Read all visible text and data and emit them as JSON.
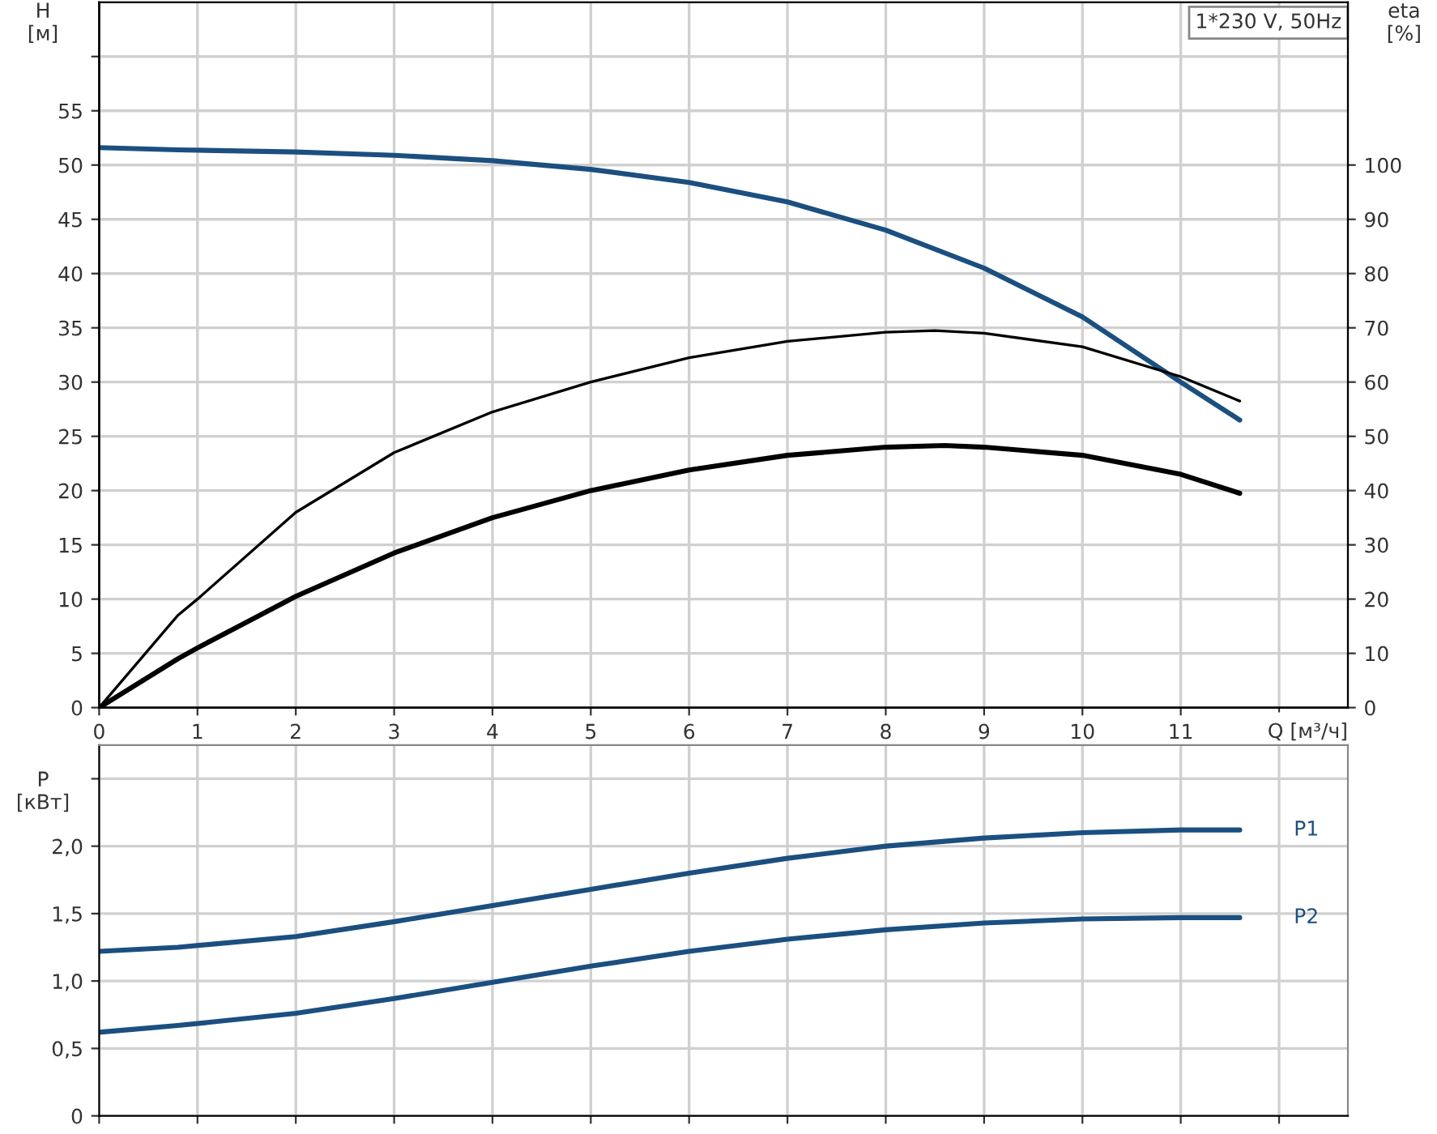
{
  "chart_data": [
    {
      "type": "line",
      "xlabel": "Q [м³/ч]",
      "ylabel": "H\n[м]",
      "y2label": "eta\n[%]",
      "annotations": [
        "1*230 V, 50Hz"
      ],
      "xlim": [
        0,
        12.7
      ],
      "xticks": [
        0,
        1,
        2,
        3,
        4,
        5,
        6,
        7,
        8,
        9,
        10,
        11,
        {
          "value": 12,
          "label": null
        }
      ],
      "ylim": [
        0,
        65
      ],
      "yticks": [
        0,
        5,
        10,
        15,
        20,
        25,
        30,
        35,
        40,
        45,
        50,
        55,
        {
          "value": 60,
          "label": null
        }
      ],
      "y2lim": [
        0,
        130
      ],
      "y2ticks": [
        0,
        10,
        20,
        30,
        40,
        50,
        60,
        70,
        80,
        90,
        100
      ],
      "grid": true,
      "legend": false,
      "marker": "none",
      "line_style": "solid",
      "series": [
        {
          "color": "#1b4f80",
          "x": [
            0,
            0.8,
            2,
            3,
            4,
            5,
            6,
            7,
            8,
            9,
            10,
            11,
            11.6
          ],
          "values": [
            51.6,
            51.4,
            51.2,
            50.9,
            50.4,
            49.6,
            48.4,
            46.6,
            44,
            40.5,
            36,
            30,
            26.5
          ]
        },
        {
          "color": "#000000",
          "axis": "y2",
          "x": [
            0,
            0.8,
            1,
            2,
            3,
            4,
            5,
            6,
            7,
            8,
            8.5,
            9,
            10,
            11,
            11.6
          ],
          "values": [
            0,
            17,
            20,
            36,
            47,
            54.5,
            60,
            64.5,
            67.5,
            69.2,
            69.5,
            69,
            66.5,
            61,
            56.5
          ]
        },
        {
          "color": "#000000",
          "axis": "y2",
          "x": [
            0,
            0.8,
            1,
            2,
            3,
            4,
            5,
            6,
            7,
            8,
            8.6,
            9,
            10,
            11,
            11.6
          ],
          "values": [
            0,
            9,
            11,
            20.5,
            28.5,
            35,
            40,
            43.8,
            46.5,
            48,
            48.3,
            48,
            46.5,
            43,
            39.5
          ]
        }
      ]
    },
    {
      "type": "line",
      "ylabel": "P\n[кВт]",
      "tick_labels": "y",
      "xlim": [
        0,
        12.7
      ],
      "xticks": [
        0,
        1,
        2,
        3,
        4,
        5,
        6,
        7,
        8,
        9,
        10,
        11,
        12
      ],
      "ylim": [
        0,
        2.75
      ],
      "yticks": [
        0,
        {
          "value": 0.5,
          "label": "0,5"
        },
        {
          "value": 1.0,
          "label": "1,0"
        },
        {
          "value": 1.5,
          "label": "1,5"
        },
        {
          "value": 2.0,
          "label": "2,0"
        },
        {
          "value": 2.5,
          "label": null
        }
      ],
      "grid": true,
      "legend": false,
      "marker": "none",
      "line_style": "solid",
      "series": [
        {
          "name": "P1",
          "color": "#1b4f80",
          "x": [
            0,
            0.8,
            2,
            3,
            4,
            5,
            6,
            7,
            8,
            9,
            10,
            11,
            11.6
          ],
          "values": [
            1.22,
            1.25,
            1.33,
            1.44,
            1.56,
            1.68,
            1.8,
            1.91,
            2.0,
            2.06,
            2.1,
            2.12,
            2.12
          ]
        },
        {
          "name": "P2",
          "color": "#1b4f80",
          "x": [
            0,
            0.8,
            2,
            3,
            4,
            5,
            6,
            7,
            8,
            9,
            10,
            11,
            11.6
          ],
          "values": [
            0.62,
            0.67,
            0.76,
            0.87,
            0.99,
            1.11,
            1.22,
            1.31,
            1.38,
            1.43,
            1.46,
            1.47,
            1.47
          ]
        }
      ]
    }
  ]
}
